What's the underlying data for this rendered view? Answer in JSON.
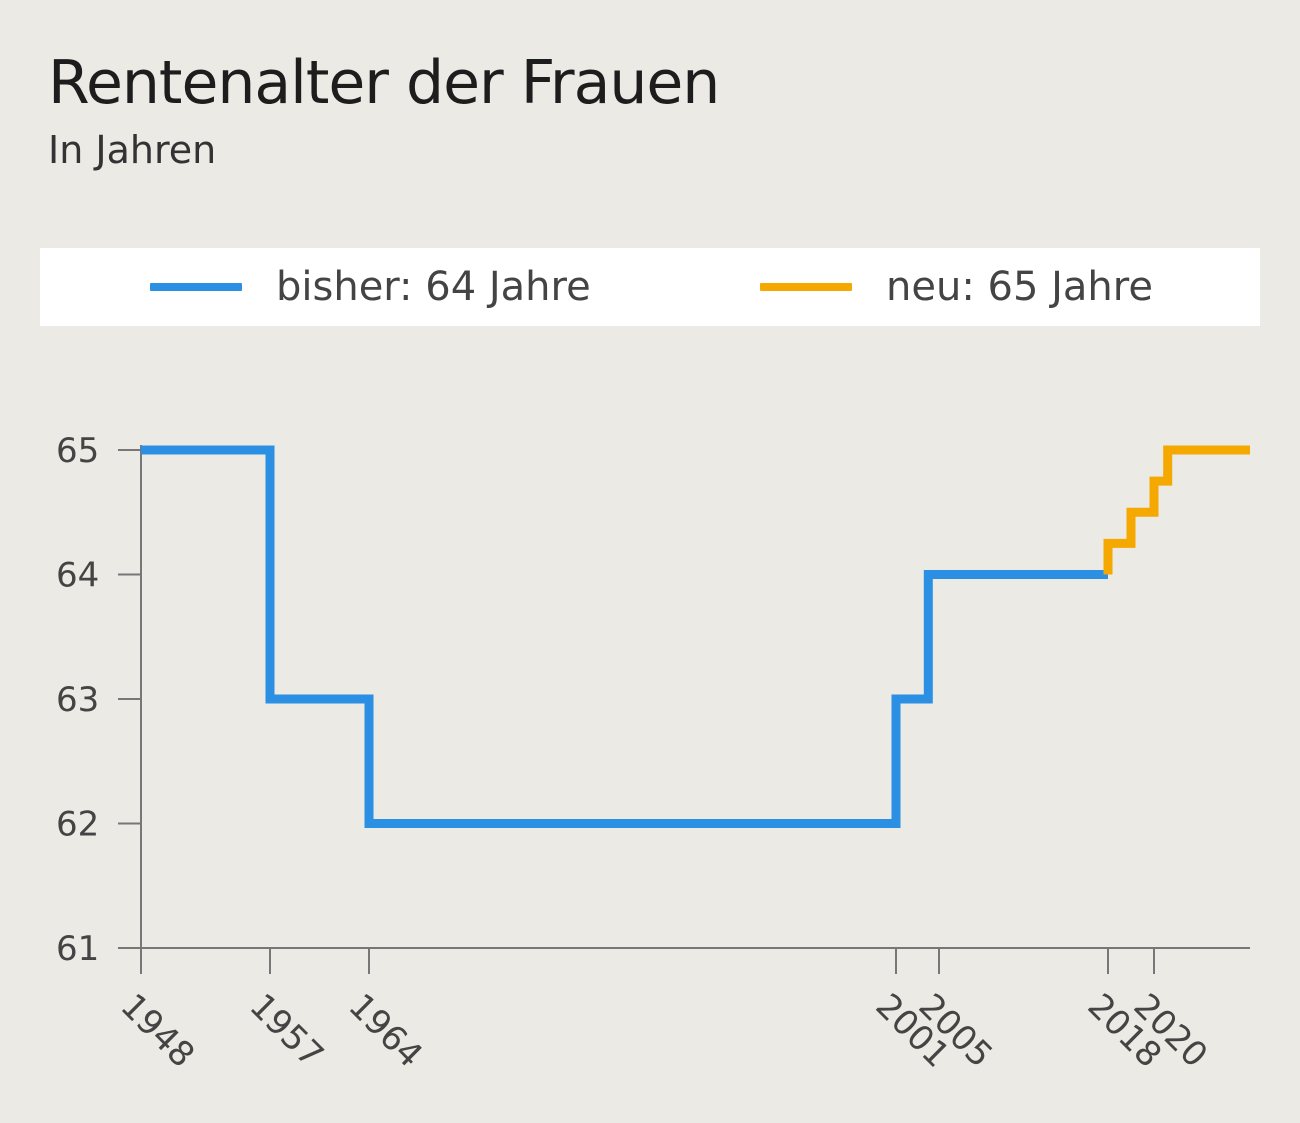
{
  "title": "Rentenalter der Frauen",
  "subtitle": "In Jahren",
  "legend": [
    {
      "label": "bisher: 64 Jahre",
      "color": "#2b8fe3"
    },
    {
      "label": "neu: 65 Jahre",
      "color": "#f5a800"
    }
  ],
  "chart_data": {
    "type": "line",
    "step": true,
    "title": "Rentenalter der Frauen",
    "subtitle": "In Jahren",
    "ylim": [
      61,
      65
    ],
    "yticks": [
      61,
      62,
      63,
      64,
      65
    ],
    "xticks": [
      1948,
      1957,
      1964,
      2001,
      2005,
      2018,
      2020
    ],
    "xlim": [
      1948,
      2027
    ],
    "grid": false,
    "legend_position": "top",
    "series": [
      {
        "name": "bisher: 64 Jahre",
        "color": "#2b8fe3",
        "points": [
          [
            1948,
            65
          ],
          [
            1957,
            65
          ],
          [
            1957,
            63
          ],
          [
            1964,
            63
          ],
          [
            1964,
            62
          ],
          [
            2001,
            62
          ],
          [
            2001,
            63
          ],
          [
            2004,
            63
          ],
          [
            2004,
            64
          ],
          [
            2018,
            64
          ]
        ]
      },
      {
        "name": "neu: 65 Jahre",
        "color": "#f5a800",
        "points": [
          [
            2018,
            64
          ],
          [
            2018,
            64.25
          ],
          [
            2019,
            64.25
          ],
          [
            2019,
            64.5
          ],
          [
            2020,
            64.5
          ],
          [
            2020,
            64.75
          ],
          [
            2021,
            64.75
          ],
          [
            2021,
            65
          ],
          [
            2027,
            65
          ]
        ]
      }
    ]
  }
}
